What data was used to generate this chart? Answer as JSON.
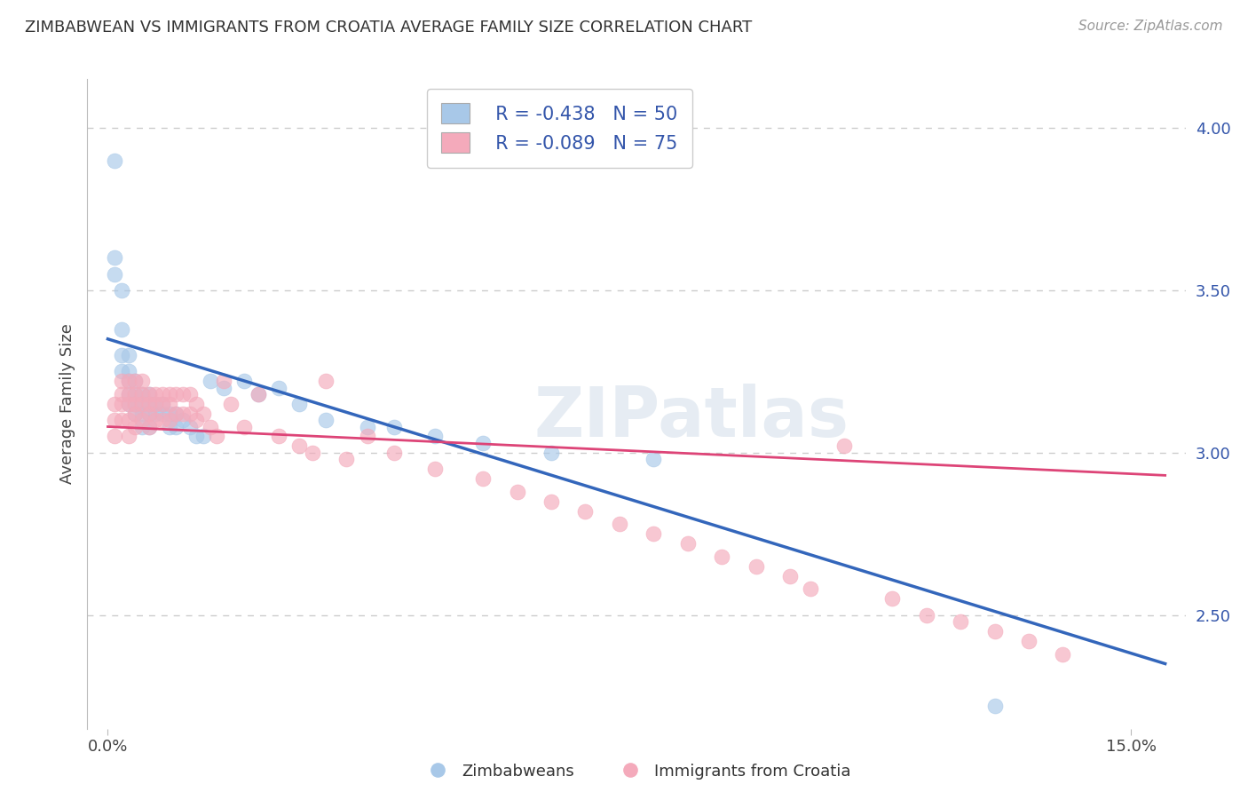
{
  "title": "ZIMBABWEAN VS IMMIGRANTS FROM CROATIA AVERAGE FAMILY SIZE CORRELATION CHART",
  "source": "Source: ZipAtlas.com",
  "ylabel": "Average Family Size",
  "y_ticks_right": [
    2.5,
    3.0,
    3.5,
    4.0
  ],
  "xlim": [
    -0.003,
    0.158
  ],
  "ylim": [
    2.15,
    4.15
  ],
  "blue_color": "#A8C8E8",
  "pink_color": "#F4AABB",
  "blue_line_color": "#3366BB",
  "pink_line_color": "#DD4477",
  "legend_r1": "R = -0.438",
  "legend_n1": "N = 50",
  "legend_r2": "R = -0.089",
  "legend_n2": "N = 75",
  "label_color": "#3355AA",
  "watermark": "ZIPatlas",
  "blue_scatter_x": [
    0.001,
    0.001,
    0.001,
    0.002,
    0.002,
    0.002,
    0.002,
    0.003,
    0.003,
    0.003,
    0.003,
    0.003,
    0.004,
    0.004,
    0.004,
    0.004,
    0.005,
    0.005,
    0.005,
    0.005,
    0.006,
    0.006,
    0.006,
    0.006,
    0.007,
    0.007,
    0.008,
    0.008,
    0.009,
    0.009,
    0.01,
    0.01,
    0.011,
    0.012,
    0.013,
    0.014,
    0.015,
    0.017,
    0.02,
    0.022,
    0.025,
    0.028,
    0.032,
    0.038,
    0.042,
    0.048,
    0.055,
    0.065,
    0.08,
    0.13
  ],
  "blue_scatter_y": [
    3.9,
    3.6,
    3.55,
    3.5,
    3.38,
    3.3,
    3.25,
    3.3,
    3.25,
    3.22,
    3.18,
    3.15,
    3.22,
    3.18,
    3.15,
    3.12,
    3.18,
    3.15,
    3.12,
    3.08,
    3.18,
    3.15,
    3.12,
    3.08,
    3.15,
    3.12,
    3.15,
    3.12,
    3.12,
    3.08,
    3.12,
    3.08,
    3.1,
    3.08,
    3.05,
    3.05,
    3.22,
    3.2,
    3.22,
    3.18,
    3.2,
    3.15,
    3.1,
    3.08,
    3.08,
    3.05,
    3.03,
    3.0,
    2.98,
    2.22
  ],
  "pink_scatter_x": [
    0.001,
    0.001,
    0.001,
    0.002,
    0.002,
    0.002,
    0.002,
    0.003,
    0.003,
    0.003,
    0.003,
    0.003,
    0.004,
    0.004,
    0.004,
    0.004,
    0.004,
    0.005,
    0.005,
    0.005,
    0.005,
    0.006,
    0.006,
    0.006,
    0.006,
    0.007,
    0.007,
    0.007,
    0.008,
    0.008,
    0.008,
    0.009,
    0.009,
    0.009,
    0.01,
    0.01,
    0.011,
    0.011,
    0.012,
    0.012,
    0.013,
    0.013,
    0.014,
    0.015,
    0.016,
    0.017,
    0.018,
    0.02,
    0.022,
    0.025,
    0.028,
    0.03,
    0.032,
    0.035,
    0.038,
    0.042,
    0.048,
    0.055,
    0.06,
    0.065,
    0.07,
    0.075,
    0.08,
    0.085,
    0.09,
    0.095,
    0.1,
    0.103,
    0.108,
    0.115,
    0.12,
    0.125,
    0.13,
    0.135,
    0.14
  ],
  "pink_scatter_y": [
    3.15,
    3.1,
    3.05,
    3.22,
    3.18,
    3.15,
    3.1,
    3.22,
    3.18,
    3.15,
    3.1,
    3.05,
    3.22,
    3.18,
    3.15,
    3.12,
    3.08,
    3.22,
    3.18,
    3.15,
    3.1,
    3.18,
    3.15,
    3.12,
    3.08,
    3.18,
    3.15,
    3.1,
    3.18,
    3.15,
    3.1,
    3.18,
    3.15,
    3.1,
    3.18,
    3.12,
    3.18,
    3.12,
    3.18,
    3.12,
    3.15,
    3.1,
    3.12,
    3.08,
    3.05,
    3.22,
    3.15,
    3.08,
    3.18,
    3.05,
    3.02,
    3.0,
    3.22,
    2.98,
    3.05,
    3.0,
    2.95,
    2.92,
    2.88,
    2.85,
    2.82,
    2.78,
    2.75,
    2.72,
    2.68,
    2.65,
    2.62,
    2.58,
    3.02,
    2.55,
    2.5,
    2.48,
    2.45,
    2.42,
    2.38
  ],
  "blue_trend_x": [
    0.0,
    0.155
  ],
  "blue_trend_y": [
    3.35,
    2.35
  ],
  "pink_trend_x": [
    0.0,
    0.155
  ],
  "pink_trend_y": [
    3.08,
    2.93
  ]
}
